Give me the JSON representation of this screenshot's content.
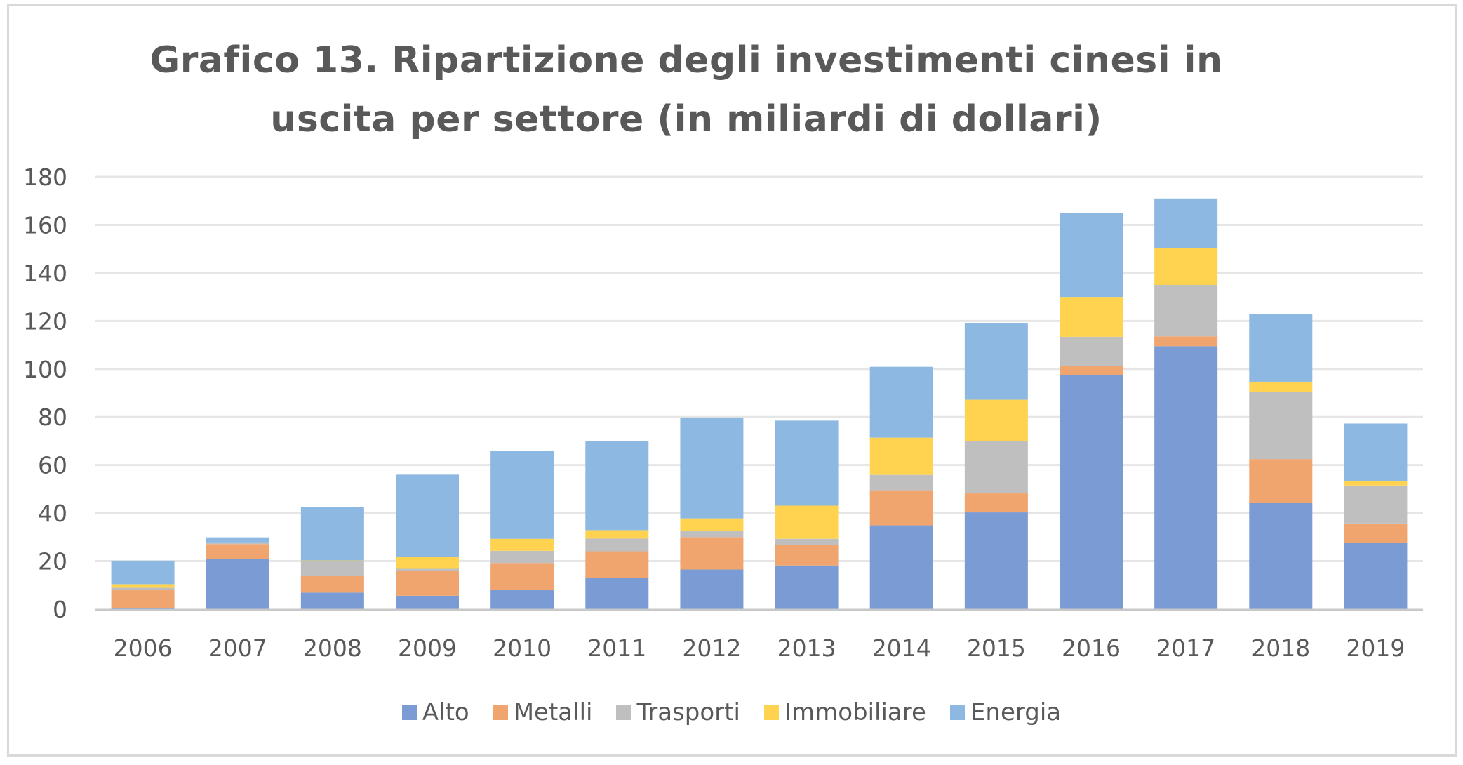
{
  "chart_data": {
    "type": "bar",
    "stacked": true,
    "title": "Grafico 13. Ripartizione degli investimenti cinesi in uscita per settore (in miliardi di dollari)",
    "title_lines": [
      "Grafico 13. Ripartizione degli investimenti cinesi in",
      "uscita per settore (in miliardi di dollari)"
    ],
    "xlabel": "",
    "ylabel": "",
    "ylim": [
      0,
      180
    ],
    "yticks": [
      0,
      20,
      40,
      60,
      80,
      100,
      120,
      140,
      160,
      180
    ],
    "grid": true,
    "legend_position": "bottom",
    "categories": [
      "2006",
      "2007",
      "2008",
      "2009",
      "2010",
      "2011",
      "2012",
      "2013",
      "2014",
      "2015",
      "2016",
      "2017",
      "2018",
      "2019"
    ],
    "series": [
      {
        "name": "Alto",
        "color": "#7A9BD4",
        "values": [
          0.5,
          20.9,
          6.9,
          5.6,
          8.0,
          13.0,
          16.5,
          18.2,
          34.9,
          40.3,
          97.6,
          109.5,
          44.4,
          27.7
        ]
      },
      {
        "name": "Metalli",
        "color": "#F0A46E",
        "values": [
          7.4,
          6.2,
          7.0,
          10.2,
          11.2,
          11.1,
          13.5,
          8.5,
          14.6,
          7.9,
          3.8,
          4.1,
          18.1,
          8.0
        ]
      },
      {
        "name": "Trasporti",
        "color": "#BFBFBF",
        "values": [
          1.0,
          0.4,
          6.1,
          1.0,
          5.1,
          5.3,
          2.5,
          2.6,
          6.4,
          21.7,
          12.0,
          21.4,
          28.1,
          15.8
        ]
      },
      {
        "name": "Immobiliare",
        "color": "#FFD34F",
        "values": [
          1.5,
          0.3,
          0.3,
          4.9,
          5.0,
          3.5,
          5.3,
          13.8,
          15.5,
          17.3,
          16.6,
          15.3,
          4.1,
          1.7
        ]
      },
      {
        "name": "Energia",
        "color": "#8DB8E1",
        "values": [
          9.8,
          2.1,
          22.1,
          34.3,
          36.7,
          37.1,
          42.0,
          35.4,
          29.5,
          32.0,
          34.9,
          20.7,
          28.3,
          24.1
        ]
      }
    ]
  },
  "colors": {
    "text": "#595959",
    "grid": "#e6e6e6",
    "axis": "#c8c8c8",
    "frame": "#d9d9d9"
  }
}
